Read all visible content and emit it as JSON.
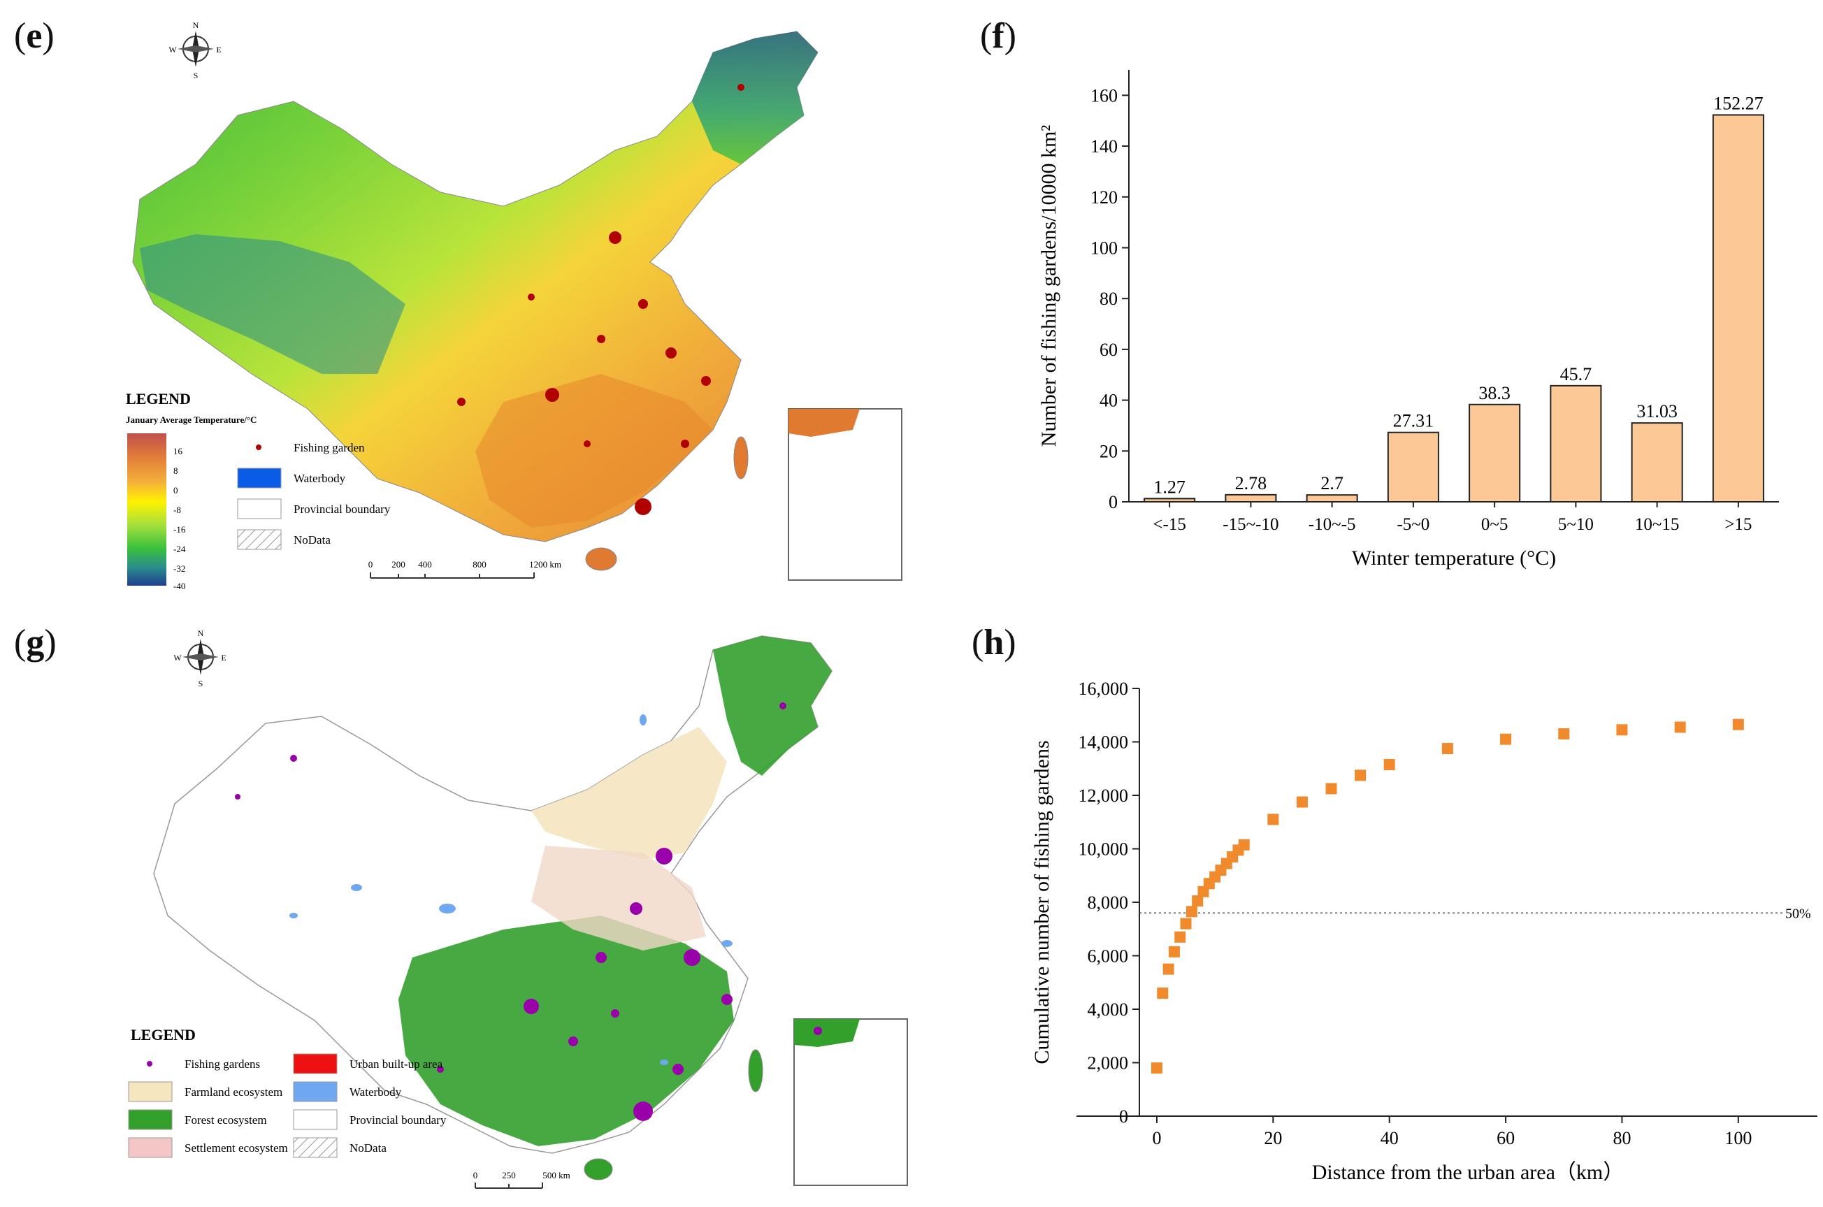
{
  "panels": {
    "e": {
      "label": "e"
    },
    "f": {
      "label": "f"
    },
    "g": {
      "label": "g"
    },
    "h": {
      "label": "h"
    }
  },
  "map_e": {
    "compass": {
      "n": "N",
      "s": "S",
      "e": "E",
      "w": "W"
    },
    "legend_title": "LEGEND",
    "colorbar_title": "January Average Temperature/°C",
    "colorbar_ticks": [
      "16",
      "8",
      "0",
      "-8",
      "-16",
      "-24",
      "-32",
      "-40"
    ],
    "colorbar_colors": [
      "#c0504d",
      "#e07b39",
      "#f4b03a",
      "#fff200",
      "#a6e03c",
      "#3cc23c",
      "#2a8d8b",
      "#1f4e8c"
    ],
    "items": [
      {
        "label": "Fishing garden",
        "symbol": "dot",
        "color": "#b00000"
      },
      {
        "label": "Waterbody",
        "symbol": "box",
        "color": "#0a5ce6"
      },
      {
        "label": "Provincial boundary",
        "symbol": "box",
        "color": "#ffffff"
      },
      {
        "label": "NoData",
        "symbol": "hatch",
        "color": "#999999"
      }
    ],
    "scalebar": [
      "0",
      "200",
      "400",
      "800",
      "1200 km"
    ]
  },
  "map_g": {
    "compass": {
      "n": "N",
      "s": "S",
      "e": "E",
      "w": "W"
    },
    "legend_title": "LEGEND",
    "items_left": [
      {
        "label": "Fishing gardens",
        "symbol": "dot",
        "color": "#9900aa"
      },
      {
        "label": "Farmland ecosystem",
        "symbol": "box",
        "color": "#f5e6c0"
      },
      {
        "label": "Forest ecosystem",
        "symbol": "box",
        "color": "#33a02c"
      },
      {
        "label": "Settlement ecosystem",
        "symbol": "box",
        "color": "#f4c6c6"
      }
    ],
    "items_right": [
      {
        "label": "Urban built-up area",
        "symbol": "box",
        "color": "#ee1111"
      },
      {
        "label": "Waterbody",
        "symbol": "box",
        "color": "#6fa8f0"
      },
      {
        "label": "Provincial boundary",
        "symbol": "box",
        "color": "#ffffff"
      },
      {
        "label": "NoData",
        "symbol": "hatch",
        "color": "#999999"
      }
    ],
    "scalebar": [
      "0",
      "250",
      "500 km"
    ]
  },
  "chart_data": [
    {
      "type": "bar",
      "title": "",
      "categories": [
        "<-15",
        "-15~-10",
        "-10~-5",
        "-5~0",
        "0~5",
        "5~10",
        "10~15",
        ">15"
      ],
      "values": [
        1.27,
        2.78,
        2.7,
        27.31,
        38.3,
        45.7,
        31.03,
        152.27
      ],
      "value_labels": [
        "1.27",
        "2.78",
        "2.7",
        "27.31",
        "38.3",
        "45.7",
        "31.03",
        "152.27"
      ],
      "xlabel": "Winter temperature (°C)",
      "ylabel": "Number of fishing gardens/10000 km²",
      "ylim": [
        0,
        170
      ],
      "yticks": [
        0,
        20,
        40,
        60,
        80,
        100,
        120,
        140,
        160
      ],
      "bar_color": "#fbc896"
    },
    {
      "type": "scatter",
      "title": "",
      "x": [
        0,
        1,
        2,
        3,
        4,
        5,
        6,
        7,
        8,
        9,
        10,
        11,
        12,
        13,
        14,
        15,
        20,
        25,
        30,
        35,
        40,
        50,
        60,
        70,
        80,
        90,
        100
      ],
      "y": [
        1800,
        4600,
        5500,
        6150,
        6700,
        7200,
        7650,
        8050,
        8400,
        8700,
        8950,
        9200,
        9450,
        9700,
        9950,
        10150,
        11100,
        11750,
        12250,
        12750,
        13150,
        13750,
        14100,
        14300,
        14450,
        14550,
        14650
      ],
      "xlabel": "Distance from the urban  area（km）",
      "ylabel": "Cumulative number of fishing gardens",
      "xlim": [
        -3,
        110
      ],
      "ylim": [
        0,
        16000
      ],
      "xticks": [
        0,
        20,
        40,
        60,
        80,
        100
      ],
      "yticks": [
        0,
        2000,
        4000,
        6000,
        8000,
        10000,
        12000,
        14000,
        16000
      ],
      "ytick_labels": [
        "0",
        "2,000",
        "4,000",
        "6,000",
        "8,000",
        "10,000",
        "12,000",
        "14,000",
        "16,000"
      ],
      "reference_line": {
        "y": 7600,
        "label": "50%"
      },
      "marker_color": "#f08a2c"
    }
  ]
}
